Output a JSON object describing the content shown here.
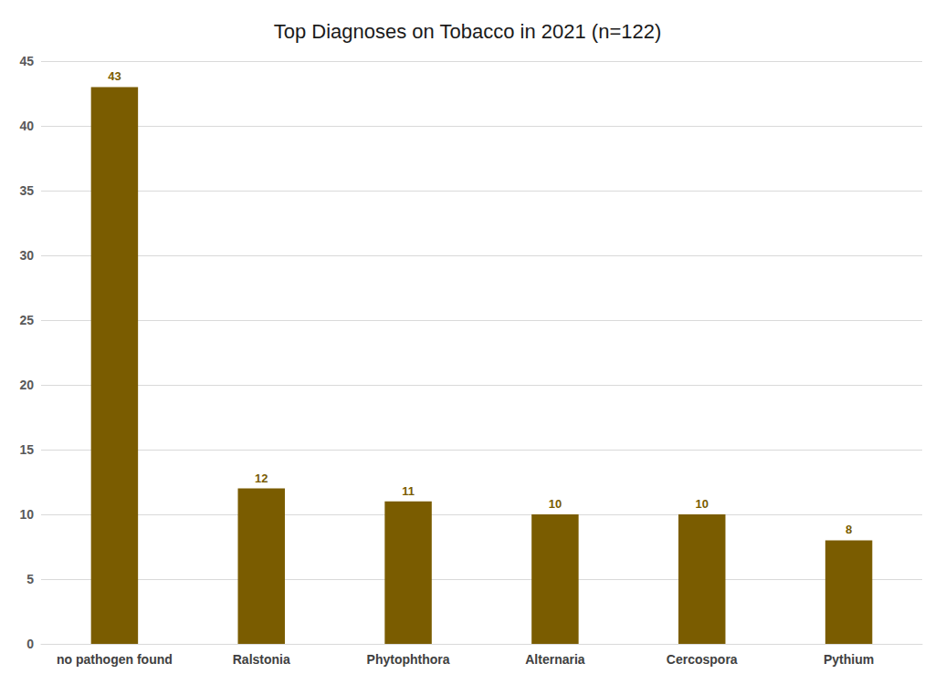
{
  "chart_data": {
    "type": "bar",
    "title": "Top Diagnoses on Tobacco in 2021 (n=122)",
    "categories": [
      "no pathogen found",
      "Ralstonia",
      "Phytophthora",
      "Alternaria",
      "Cercospora",
      "Pythium"
    ],
    "values": [
      43,
      12,
      11,
      10,
      10,
      8
    ],
    "color": "#7a5c00",
    "ylim": [
      0,
      45
    ],
    "yticks": [
      0,
      5,
      10,
      15,
      20,
      25,
      30,
      35,
      40,
      45
    ],
    "grid": true,
    "data_labels": true
  }
}
